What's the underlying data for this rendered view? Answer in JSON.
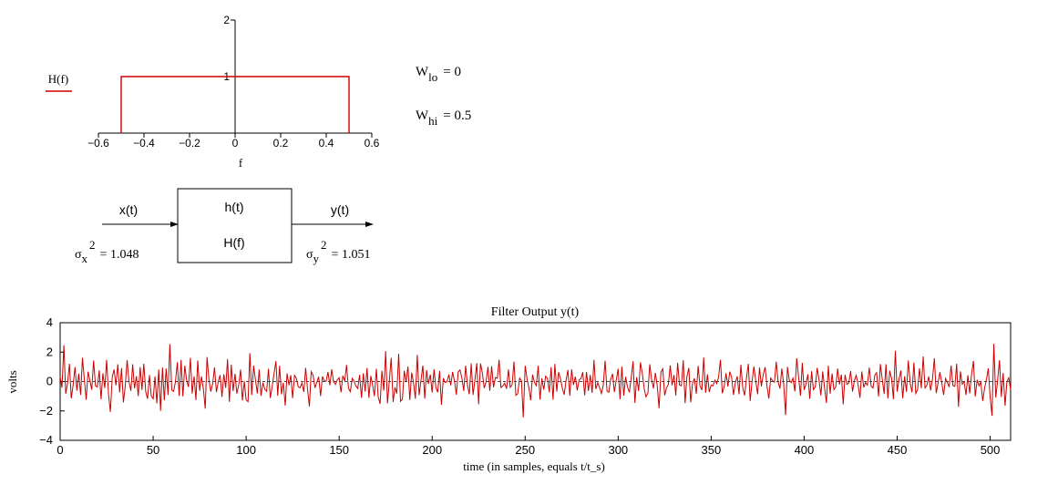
{
  "colors": {
    "trace": "#cc0000",
    "axis": "#000000",
    "zero_line": "#444444"
  },
  "filter_plot": {
    "legend_label": "H(f)",
    "xlabel": "f",
    "x_ticks": [
      "−0.6",
      "−0.4",
      "−0.2",
      "0",
      "0.2",
      "0.4",
      "0.6"
    ],
    "y_ticks": [
      "1",
      "2"
    ],
    "w_lo_label": "W",
    "w_lo_sub": "lo",
    "w_lo_value": "= 0",
    "w_hi_label": "W",
    "w_hi_sub": "hi",
    "w_hi_value": "= 0.5"
  },
  "block_diagram": {
    "input_label": "x(t)",
    "output_label": "y(t)",
    "box_line1": "h(t)",
    "box_line2": "H(f)",
    "sigma_x_sym": "σ",
    "sigma_x_sub": "x",
    "sigma_x_sup": "2",
    "sigma_x_value": "= 1.048",
    "sigma_y_sym": "σ",
    "sigma_y_sub": "y",
    "sigma_y_sup": "2",
    "sigma_y_value": "= 1.051"
  },
  "output_plot": {
    "title": "Filter Output y(t)",
    "xlabel": "time (in samples, equals  t/t_s)",
    "ylabel": "volts",
    "x_ticks": [
      "0",
      "50",
      "100",
      "150",
      "200",
      "250",
      "300",
      "350",
      "400",
      "450",
      "500"
    ],
    "y_ticks": [
      "4",
      "2",
      "0",
      "−2",
      "−4"
    ]
  },
  "chart_data": [
    {
      "type": "line",
      "title": "",
      "xlabel": "f",
      "ylabel": "",
      "legend": [
        "H(f)"
      ],
      "xlim": [
        -0.6,
        0.6
      ],
      "ylim": [
        0,
        2
      ],
      "series": [
        {
          "name": "H(f)",
          "x": [
            -0.5,
            -0.5,
            0.5,
            0.5
          ],
          "y": [
            0,
            1,
            1,
            0
          ]
        }
      ]
    },
    {
      "type": "line",
      "title": "Filter Output y(t)",
      "xlabel": "time (in samples, equals  t/t_s)",
      "ylabel": "volts",
      "xlim": [
        0,
        511
      ],
      "ylim": [
        -4,
        4
      ],
      "grid": false,
      "x_step": 1,
      "series": [
        {
          "name": "",
          "values": [
            0.35,
            -0.42,
            2.47,
            -0.83,
            -0.08,
            1.21,
            -1.15,
            -0.21,
            0.98,
            -0.62,
            0.54,
            -0.91,
            1.61,
            0.18,
            -1.24,
            0.67,
            0.07,
            -0.56,
            1.43,
            -0.29,
            -0.37,
            0.76,
            -1.21,
            0.56,
            -0.44,
            1.48,
            -0.87,
            -2.07,
            0.31,
            0.82,
            -0.26,
            1.17,
            -0.74,
            0.92,
            -1.42,
            -0.33,
            1.46,
            0.01,
            -0.63,
            1.18,
            -0.46,
            0.36,
            -0.99,
            0.98,
            -0.57,
            1.21,
            -0.69,
            -1.17,
            0.44,
            -0.98,
            -1.17,
            0.35,
            -1.49,
            0.81,
            -1.99,
            0.95,
            -1.28,
            0.88,
            -0.91,
            2.55,
            -0.58,
            -0.67,
            -0.04,
            1.31,
            -0.98,
            1.47,
            -1.02,
            1.07,
            0.09,
            -0.37,
            1.61,
            -0.81,
            0.35,
            -1.26,
            1.43,
            -0.63,
            0.34,
            -0.51,
            -1.84,
            1.66,
            0.12,
            -0.69,
            -0.14,
            0.96,
            -0.72,
            -0.02,
            0.44,
            -1.05,
            0.49,
            -0.43,
            1.53,
            -1.38,
            1.15,
            -0.65,
            0.52,
            -0.82,
            -0.26,
            0.81,
            -1.29,
            0.01,
            -1.26,
            -1.37,
            1.93,
            -0.92,
            1.08,
            0.13,
            -0.81,
            0.82,
            -0.97,
            -0.08,
            -0.52,
            -0.67,
            0.86,
            -1.12,
            -0.35,
            0.54,
            1.38,
            -0.97,
            1.07,
            -0.87,
            -0.09,
            -1.64,
            0.55,
            -0.24,
            0.43,
            -1.13,
            0.42,
            0.21,
            -0.36,
            -0.43,
            -0.1,
            -0.71,
            0.93,
            -0.53,
            -1.69,
            0.67,
            0.42,
            -0.42,
            -0.05,
            0.32,
            -0.99,
            0.34,
            0.05,
            0.02,
            0.65,
            -0.25,
            0.83,
            -0.01,
            -0.19,
            0.11,
            0.26,
            -0.73,
            0.39,
            0.03,
            1.13,
            -0.45,
            -0.69,
            0.21,
            0.03,
            -0.31,
            -0.47,
            0.45,
            -1.11,
            0.56,
            -0.69,
            0.92,
            -1.11,
            0.38,
            -0.25,
            -0.99,
            0.87,
            -1.04,
            -1.52,
            0.73,
            -0.62,
            2.07,
            -1.48,
            0.09,
            1.61,
            -1.39,
            -0.39,
            -0.82,
            1.88,
            -1.35,
            -1.21,
            0.74,
            -0.04,
            1.02,
            -1.26,
            0.61,
            -0.09,
            -1.17,
            1.81,
            -0.93,
            0.08,
            1.09,
            -1.16,
            0.78,
            -0.16,
            0.47,
            -0.74,
            0.83,
            -0.41,
            -0.73,
            0.72,
            -1.59,
            0.23,
            -0.06,
            -0.02,
            0.47,
            -0.26,
            0.65,
            0.04,
            -0.89,
            0.66,
            0.79,
            0.22,
            -0.64,
            1.07,
            -0.28,
            -0.86,
            1.23,
            -0.91,
            0.13,
            1.25,
            -1.54,
            1.23,
            0.59,
            -0.45,
            -0.02,
            1.0,
            -0.63,
            1.04,
            -0.39,
            0.27,
            0.22,
            1.49,
            -0.41,
            -0.3,
            -0.11,
            -0.49,
            0.82,
            -0.4,
            -0.22,
            1.35,
            -0.94,
            -0.84,
            0.23,
            0.06,
            -2.44,
            1.07,
            0.2,
            -0.44,
            -1.27,
            0.47,
            -0.06,
            -0.28,
            1.07,
            -1.23,
            0.21,
            -0.55,
            0.36,
            0.22,
            -0.73,
            0.98,
            -1.24,
            1.2,
            -0.69,
            0.64,
            0.18,
            -0.45,
            -0.89,
            0.09,
            0.79,
            -0.97,
            0.83,
            -0.23,
            0.33,
            -0.61,
            0.12,
            0.19,
            0.64,
            -0.94,
            0.66,
            -0.65,
            0.45,
            -0.77,
            1.47,
            -0.51,
            -0.08,
            -0.41,
            -0.81,
            -0.25,
            1.42,
            -0.65,
            -0.73,
            0.18,
            0.52,
            -0.72,
            0.11,
            0.87,
            -1.2,
            1.01,
            -0.96,
            0.33,
            -0.35,
            -0.74,
            0.22,
            1.38,
            -1.46,
            0.3,
            -0.64,
            1.3,
            0.54,
            -0.48,
            -1.04,
            -0.78,
            1.17,
            0.11,
            -0.47,
            0.59,
            -0.27,
            -1.82,
            0.65,
            0.87,
            -0.94,
            -0.43,
            -0.2,
            1.1,
            -0.26,
            0.44,
            -0.95,
            1.28,
            -0.24,
            -0.3,
            1.45,
            -1.47,
            0.32,
            0.93,
            -1.41,
            -0.12,
            0.22,
            -0.83,
            1.06,
            -0.29,
            -0.58,
            1.63,
            -0.76,
            0.49,
            -0.71,
            -0.24,
            -0.29,
            0.09,
            -0.14,
            0.3,
            1.48,
            -0.8,
            -0.34,
            0.56,
            -0.34,
            0.67,
            0.32,
            -0.91,
            -0.08,
            0.35,
            -0.86,
            1.14,
            -0.44,
            -0.95,
            0.27,
            1.2,
            -1.32,
            0.02,
            1.02,
            0.02,
            -0.86,
            0.95,
            -0.33,
            0.45,
            0.98,
            -0.29,
            -1.16,
            0.24,
            0.05,
            -0.05,
            1.35,
            -0.04,
            -0.48,
            0.88,
            -0.19,
            -2.29,
            1.0,
            0.09,
            -0.08,
            0.23,
            -0.67,
            1.58,
            0.33,
            -0.97,
            1.27,
            -0.57,
            -0.16,
            0.49,
            -1.18,
            0.7,
            -0.55,
            -0.36,
            0.93,
            0.1,
            -0.95,
            0.69,
            -0.46,
            -1.46,
            1.07,
            -0.83,
            0.54,
            -0.56,
            -0.37,
            0.88,
            -0.19,
            0.47,
            -1.55,
            0.46,
            -0.19,
            -0.1,
            0.71,
            -0.68,
            0.05,
            0.42,
            -0.21,
            -1.11,
            0.69,
            -0.4,
            -0.07,
            -0.25,
            0.95,
            -0.3,
            -0.44,
            0.44,
            0.6,
            -1.01,
            1.19,
            0.12,
            -0.84,
            1.18,
            -1.15,
            0.73,
            0.21,
            -1.21,
            2.09,
            -0.69,
            0.14,
            0.75,
            -1.13,
            0.36,
            -0.7,
            1.43,
            -0.1,
            -0.73,
            1.29,
            -0.81,
            -0.56,
            0.9,
            -0.46,
            1.71,
            -0.44,
            -0.24,
            0.35,
            -0.61,
            0.18,
            1.58,
            -0.79,
            -0.1,
            0.64,
            -0.09,
            -0.91,
            0.21,
            -0.07,
            -0.37,
            1.09,
            -0.28,
            -0.33,
            1.21,
            -1.72,
            0.69,
            -0.18,
            -0.01,
            -0.91,
            0.42,
            -0.8,
            0.47,
            1.4,
            -1.02,
            0.12,
            -0.29,
            -0.04,
            -1.32,
            -0.47,
            0.15,
            0.89,
            -1.02,
            -2.33,
            2.56,
            -1.1,
            0.06,
            1.45,
            -1.05,
            0.59,
            -1.65,
            -0.02,
            0.26,
            -0.56
          ]
        }
      ]
    }
  ]
}
